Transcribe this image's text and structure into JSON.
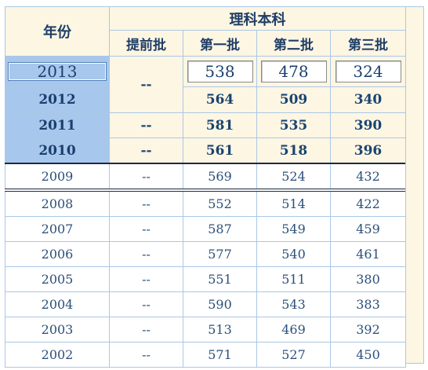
{
  "header": {
    "year_label": "年份",
    "group_label": "理科本科",
    "columns": [
      "提前批",
      "第一批",
      "第二批",
      "第三批"
    ]
  },
  "selected": {
    "year": "2013",
    "batch1": "538",
    "batch2": "478",
    "batch3": "324"
  },
  "rows": [
    {
      "year": "2012",
      "early": "",
      "batch1": "564",
      "batch2": "509",
      "batch3": "340"
    },
    {
      "year": "2011",
      "early": "--",
      "batch1": "581",
      "batch2": "535",
      "batch3": "390"
    },
    {
      "year": "2010",
      "early": "--",
      "batch1": "561",
      "batch2": "518",
      "batch3": "396"
    },
    {
      "year": "2009",
      "early": "--",
      "batch1": "569",
      "batch2": "524",
      "batch3": "432"
    },
    {
      "year": "2008",
      "early": "--",
      "batch1": "552",
      "batch2": "514",
      "batch3": "422"
    },
    {
      "year": "2007",
      "early": "--",
      "batch1": "587",
      "batch2": "549",
      "batch3": "459"
    },
    {
      "year": "2006",
      "early": "--",
      "batch1": "577",
      "batch2": "540",
      "batch3": "461"
    },
    {
      "year": "2005",
      "early": "--",
      "batch1": "551",
      "batch2": "511",
      "batch3": "380"
    },
    {
      "year": "2004",
      "early": "--",
      "batch1": "590",
      "batch2": "543",
      "batch3": "383"
    },
    {
      "year": "2003",
      "early": "--",
      "batch1": "513",
      "batch2": "469",
      "batch3": "392"
    },
    {
      "year": "2002",
      "early": "--",
      "batch1": "571",
      "batch2": "527",
      "batch3": "450"
    }
  ],
  "merged_early_2013_2012": "--",
  "colors": {
    "header_bg": "#fdf6e3",
    "year_highlight": "#a8c7ec",
    "grid": "#a9c8e6",
    "text": "#1a3f6e"
  }
}
